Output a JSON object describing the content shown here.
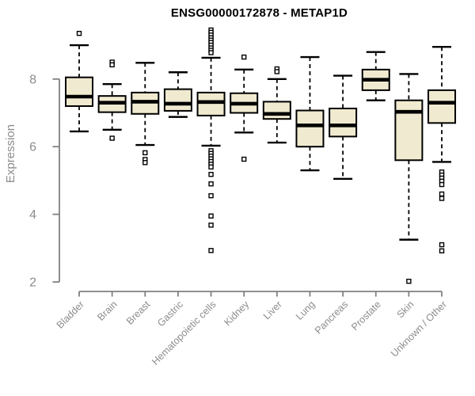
{
  "chart_data": {
    "type": "boxplot",
    "title": "ENSG00000172878 - METAP1D",
    "ylabel": "Expression",
    "xlabel": "",
    "yticks": [
      2,
      4,
      6,
      8
    ],
    "ylim": [
      2,
      9.5
    ],
    "grid": false,
    "legend": "none",
    "categories": [
      "Bladder",
      "Brain",
      "Breast",
      "Gastric",
      "Hematopoietic cells",
      "Kidney",
      "Liver",
      "Lung",
      "Pancreas",
      "Prostate",
      "Skin",
      "Unknown / Other"
    ],
    "series": [
      {
        "name": "Bladder",
        "low": 6.45,
        "q1": 7.2,
        "median": 7.48,
        "q3": 8.05,
        "high": 9.0,
        "outliers": [
          9.35
        ]
      },
      {
        "name": "Brain",
        "low": 6.5,
        "q1": 7.02,
        "median": 7.3,
        "q3": 7.5,
        "high": 7.85,
        "outliers": [
          8.5,
          8.42,
          6.25
        ]
      },
      {
        "name": "Breast",
        "low": 6.05,
        "q1": 6.97,
        "median": 7.33,
        "q3": 7.6,
        "high": 8.48,
        "outliers": [
          5.82,
          5.62,
          5.53
        ]
      },
      {
        "name": "Gastric",
        "low": 6.88,
        "q1": 7.06,
        "median": 7.27,
        "q3": 7.7,
        "high": 8.2,
        "outliers": []
      },
      {
        "name": "Hematopoietic cells",
        "low": 6.03,
        "q1": 6.92,
        "median": 7.32,
        "q3": 7.6,
        "high": 8.63,
        "outliers": [
          9.45,
          9.38,
          9.3,
          9.22,
          9.15,
          9.08,
          9.0,
          8.92,
          8.85,
          8.78,
          5.88,
          5.8,
          5.72,
          5.64,
          5.56,
          5.48,
          5.4,
          5.18,
          4.9,
          4.55,
          3.95,
          3.68,
          2.93
        ]
      },
      {
        "name": "Kidney",
        "low": 6.42,
        "q1": 7.0,
        "median": 7.27,
        "q3": 7.58,
        "high": 8.28,
        "outliers": [
          8.65,
          5.63
        ]
      },
      {
        "name": "Liver",
        "low": 6.12,
        "q1": 6.82,
        "median": 6.97,
        "q3": 7.33,
        "high": 8.0,
        "outliers": [
          8.3,
          8.22
        ]
      },
      {
        "name": "Lung",
        "low": 5.3,
        "q1": 6.0,
        "median": 6.63,
        "q3": 7.07,
        "high": 8.65,
        "outliers": []
      },
      {
        "name": "Pancreas",
        "low": 5.05,
        "q1": 6.3,
        "median": 6.63,
        "q3": 7.13,
        "high": 8.1,
        "outliers": []
      },
      {
        "name": "Prostate",
        "low": 7.37,
        "q1": 7.67,
        "median": 7.98,
        "q3": 8.28,
        "high": 8.8,
        "outliers": []
      },
      {
        "name": "Skin",
        "low": 3.25,
        "q1": 5.6,
        "median": 7.03,
        "q3": 7.37,
        "high": 8.15,
        "outliers": [
          2.02
        ]
      },
      {
        "name": "Unknown / Other",
        "low": 5.55,
        "q1": 6.7,
        "median": 7.3,
        "q3": 7.67,
        "high": 8.95,
        "outliers": [
          5.25,
          5.16,
          5.07,
          4.98,
          4.88,
          4.6,
          4.47,
          3.1,
          2.92
        ]
      }
    ],
    "colors": {
      "box_fill": "#f0ead0",
      "box_border": "#000000",
      "median": "#000000",
      "whisker": "#000000",
      "outlier_fill": "#ffffff",
      "axis": "#808080",
      "tick_label": "#8c8c8c",
      "title": "#000000"
    }
  }
}
